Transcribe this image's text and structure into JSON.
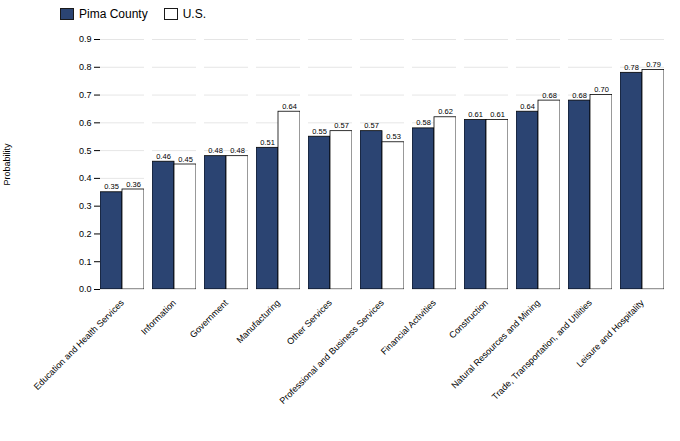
{
  "chart_data": {
    "type": "bar",
    "categories": [
      "Education and Health Services",
      "Information",
      "Government",
      "Manufacturing",
      "Other Services",
      "Professional and Business Services",
      "Financial Activities",
      "Construction",
      "Natural Resources and Mining",
      "Trade, Transportation, and Utilities",
      "Leisure and Hospitality"
    ],
    "series": [
      {
        "name": "Pima County",
        "color": "#2B4472",
        "values": [
          0.35,
          0.46,
          0.48,
          0.51,
          0.55,
          0.57,
          0.58,
          0.61,
          0.64,
          0.68,
          0.78
        ],
        "value_labels": [
          "0.35",
          "0.46",
          "0.48",
          "0.51",
          "0.55",
          "0.57",
          "0.58",
          "0.61",
          "0.64",
          "0.68",
          "0.78"
        ]
      },
      {
        "name": "U.S.",
        "color": "#FFFFFF",
        "values": [
          0.36,
          0.45,
          0.48,
          0.64,
          0.57,
          0.53,
          0.62,
          0.61,
          0.68,
          0.7,
          0.79
        ],
        "value_labels": [
          "0.36",
          "0.45",
          "0.48",
          "0.64",
          "0.57",
          "0.53",
          "0.62",
          "0.61",
          "0.68",
          "0.70",
          "0.79"
        ]
      }
    ],
    "ylabel": "Probability",
    "ylim": [
      0,
      0.9
    ],
    "yticks": [
      {
        "value": 0,
        "label": "0.0"
      },
      0.1,
      0.2,
      0.3,
      0.4,
      0.5,
      0.6,
      0.7,
      0.8,
      0.9
    ],
    "grid": true,
    "legend": "upper left",
    "data_labels": true
  }
}
